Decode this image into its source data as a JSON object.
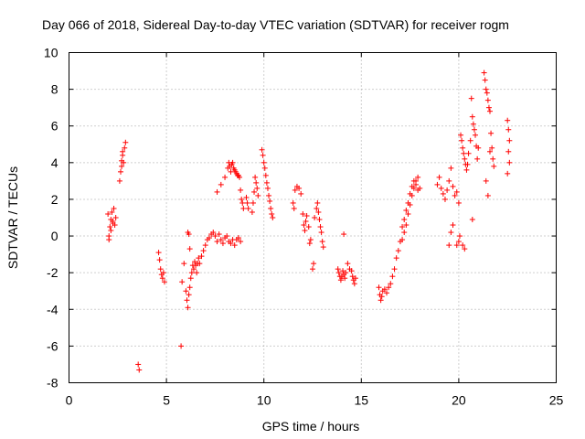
{
  "chart_data": {
    "type": "scatter",
    "title": "Day 066 of 2018, Sidereal Day-to-day VTEC variation (SDTVAR) for receiver rogm",
    "xlabel": "GPS time / hours",
    "ylabel": "SDTVAR / TECUs",
    "xlim": [
      0,
      25
    ],
    "ylim": [
      -8,
      10
    ],
    "x_ticks": [
      0,
      5,
      10,
      15,
      20,
      25
    ],
    "y_ticks": [
      -8,
      -6,
      -4,
      -2,
      0,
      2,
      4,
      6,
      8,
      10
    ],
    "x_tick_labels": [
      "0",
      "5",
      "10",
      "15",
      "20",
      "25"
    ],
    "y_tick_labels": [
      "-8",
      "-6",
      "-4",
      "-2",
      "0",
      "2",
      "4",
      "6",
      "8",
      "10"
    ],
    "grid": true,
    "marker": "+",
    "color": "#ff0000",
    "series": [
      {
        "name": "SDTVAR",
        "x": [
          2.0,
          2.05,
          2.1,
          2.15,
          2.2,
          2.25,
          2.3,
          2.35,
          2.4,
          2.05,
          2.15,
          2.25,
          2.6,
          2.65,
          2.7,
          2.75,
          2.8,
          2.85,
          2.9,
          2.7,
          2.75,
          3.55,
          3.6,
          4.6,
          4.65,
          4.7,
          4.75,
          4.8,
          4.85,
          4.9,
          5.75,
          5.8,
          5.9,
          6.0,
          6.05,
          6.1,
          6.15,
          6.2,
          6.25,
          6.3,
          6.35,
          6.4,
          6.45,
          6.5,
          6.55,
          6.6,
          6.65,
          6.7,
          6.8,
          6.9,
          7.0,
          7.1,
          7.2,
          7.3,
          7.4,
          7.5,
          7.6,
          7.7,
          7.8,
          7.9,
          8.0,
          8.1,
          8.2,
          8.3,
          8.4,
          8.5,
          8.6,
          8.7,
          8.8,
          6.1,
          6.2,
          6.15,
          7.6,
          7.8,
          8.0,
          8.15,
          8.2,
          8.25,
          8.3,
          8.35,
          8.4,
          8.45,
          8.5,
          8.55,
          8.6,
          8.65,
          8.7,
          8.75,
          8.8,
          8.85,
          8.9,
          8.95,
          9.1,
          9.15,
          9.2,
          9.4,
          9.45,
          9.5,
          9.55,
          9.6,
          9.65,
          9.7,
          9.9,
          9.95,
          10.0,
          10.05,
          10.1,
          10.15,
          10.2,
          10.25,
          10.3,
          10.35,
          10.4,
          10.45,
          11.5,
          11.55,
          11.6,
          11.7,
          11.8,
          11.9,
          12.0,
          12.05,
          12.1,
          12.15,
          12.2,
          12.3,
          12.35,
          12.4,
          12.5,
          12.55,
          12.6,
          12.7,
          12.75,
          12.8,
          12.85,
          12.9,
          12.95,
          13.0,
          13.05,
          13.8,
          13.85,
          13.9,
          13.95,
          14.0,
          14.05,
          14.1,
          14.15,
          14.2,
          14.3,
          14.4,
          14.5,
          14.55,
          14.6,
          14.65,
          14.7,
          14.1,
          15.9,
          15.95,
          16.0,
          16.05,
          16.1,
          16.2,
          16.3,
          16.4,
          16.5,
          16.6,
          16.7,
          16.8,
          16.9,
          17.0,
          17.1,
          17.2,
          17.3,
          17.4,
          17.5,
          17.6,
          17.7,
          17.8,
          17.9,
          18.0,
          17.1,
          17.2,
          17.3,
          17.4,
          17.5,
          17.6,
          17.7,
          17.8,
          17.9,
          18.9,
          19.0,
          19.1,
          19.2,
          19.3,
          19.4,
          19.5,
          19.6,
          19.7,
          19.8,
          19.9,
          20.0,
          19.5,
          19.6,
          19.7,
          19.9,
          20.0,
          20.05,
          20.1,
          20.15,
          20.2,
          20.25,
          20.3,
          20.35,
          20.4,
          20.45,
          20.5,
          20.6,
          20.65,
          20.7,
          20.75,
          20.8,
          20.85,
          20.9,
          20.95,
          21.0,
          20.2,
          20.3,
          20.7,
          21.3,
          21.35,
          21.4,
          21.45,
          21.5,
          21.55,
          21.6,
          21.65,
          21.7,
          21.75,
          21.8,
          21.4,
          21.5,
          21.6,
          22.5,
          22.55,
          22.6,
          22.55,
          22.6,
          22.5
        ],
        "y": [
          1.2,
          0.0,
          0.5,
          0.9,
          1.3,
          0.8,
          1.5,
          0.6,
          1.0,
          -0.2,
          0.3,
          0.7,
          3.0,
          3.5,
          4.1,
          4.4,
          4.0,
          4.8,
          5.1,
          3.8,
          4.6,
          -7.0,
          -7.3,
          -0.9,
          -1.3,
          -1.8,
          -2.1,
          -2.3,
          -2.0,
          -2.5,
          -6.0,
          -2.5,
          -1.5,
          -3.0,
          -3.5,
          -3.9,
          -3.2,
          -2.8,
          -2.3,
          -2.0,
          -1.6,
          -1.8,
          -1.4,
          -1.6,
          -2.0,
          -1.5,
          -1.2,
          -1.5,
          -1.1,
          -0.8,
          -0.5,
          -0.2,
          -0.1,
          0.1,
          0.2,
          0.0,
          -0.3,
          0.1,
          -0.2,
          -0.4,
          -0.1,
          0.0,
          -0.3,
          -0.4,
          -0.2,
          -0.5,
          -0.2,
          -0.1,
          -0.3,
          0.2,
          -0.7,
          0.1,
          2.4,
          2.8,
          3.2,
          3.7,
          4.0,
          3.8,
          3.5,
          3.9,
          4.0,
          3.7,
          3.6,
          3.5,
          3.4,
          3.3,
          3.3,
          3.2,
          2.5,
          2.0,
          1.8,
          1.5,
          2.1,
          1.8,
          1.5,
          1.3,
          1.8,
          2.4,
          3.2,
          2.9,
          2.6,
          2.2,
          4.7,
          4.4,
          4.0,
          3.7,
          3.3,
          2.9,
          2.6,
          2.2,
          1.9,
          1.5,
          1.2,
          1.0,
          1.8,
          1.5,
          2.5,
          2.7,
          2.6,
          2.3,
          1.2,
          0.6,
          0.3,
          0.8,
          1.1,
          0.5,
          -0.4,
          -0.2,
          -1.8,
          -1.5,
          1.0,
          1.5,
          1.8,
          1.3,
          0.9,
          0.5,
          0.2,
          -0.3,
          -0.6,
          -1.8,
          -2.0,
          -2.2,
          -2.4,
          -2.2,
          -1.9,
          -2.1,
          -2.3,
          -2.0,
          -1.5,
          -1.8,
          -1.9,
          -2.2,
          -2.4,
          -2.6,
          -2.3,
          0.1,
          -2.8,
          -3.2,
          -3.5,
          -3.3,
          -3.0,
          -2.9,
          -3.1,
          -2.8,
          -2.6,
          -2.2,
          -1.8,
          -1.2,
          -0.8,
          -0.3,
          -0.2,
          0.2,
          0.6,
          1.2,
          1.7,
          2.2,
          2.6,
          3.0,
          3.2,
          2.6,
          0.5,
          0.9,
          1.4,
          1.8,
          2.3,
          2.7,
          3.0,
          2.8,
          2.5,
          2.8,
          3.2,
          2.6,
          2.3,
          2.0,
          2.5,
          3.0,
          3.7,
          2.7,
          2.2,
          2.4,
          1.8,
          -0.5,
          0.2,
          0.6,
          -0.5,
          -0.3,
          0.0,
          5.5,
          5.2,
          4.8,
          4.5,
          4.2,
          3.9,
          3.6,
          3.9,
          4.5,
          5.2,
          7.5,
          6.5,
          6.1,
          5.8,
          5.5,
          4.9,
          4.2,
          4.8,
          -0.5,
          -0.7,
          0.9,
          8.9,
          8.5,
          8.0,
          7.8,
          7.4,
          7.0,
          6.8,
          5.6,
          4.8,
          4.2,
          3.8,
          3.0,
          2.2,
          4.6,
          6.3,
          5.8,
          5.2,
          4.6,
          4.0,
          3.4
        ]
      }
    ]
  }
}
